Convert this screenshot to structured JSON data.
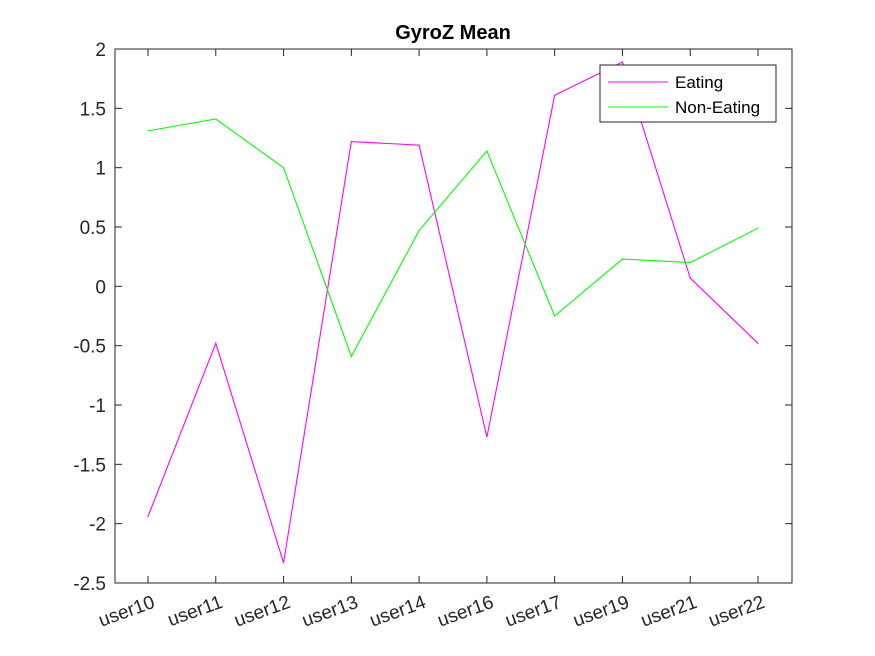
{
  "chart_data": {
    "type": "line",
    "title": "GyroZ Mean",
    "xlabel": "",
    "ylabel": "",
    "categories": [
      "user10",
      "user11",
      "user12",
      "user13",
      "user14",
      "user16",
      "user17",
      "user19",
      "user21",
      "user22"
    ],
    "ylim": [
      -2.5,
      2
    ],
    "yticks": [
      -2.5,
      -2,
      -1.5,
      -1,
      -0.5,
      0,
      0.5,
      1,
      1.5,
      2
    ],
    "ytick_labels": [
      "-2.5",
      "-2",
      "-1.5",
      "-1",
      "-0.5",
      "0",
      "0.5",
      "1",
      "1.5",
      "2"
    ],
    "grid": false,
    "legend_position": "top-right",
    "series": [
      {
        "name": "Eating",
        "color": "#ff00ff",
        "values": [
          -1.94,
          -0.48,
          -2.33,
          1.22,
          1.19,
          -1.27,
          1.61,
          1.89,
          0.07,
          -0.48
        ]
      },
      {
        "name": "Non-Eating",
        "color": "#00ff00",
        "values": [
          1.31,
          1.41,
          1.0,
          -0.59,
          0.47,
          1.14,
          -0.25,
          0.23,
          0.2,
          0.49
        ]
      }
    ]
  }
}
